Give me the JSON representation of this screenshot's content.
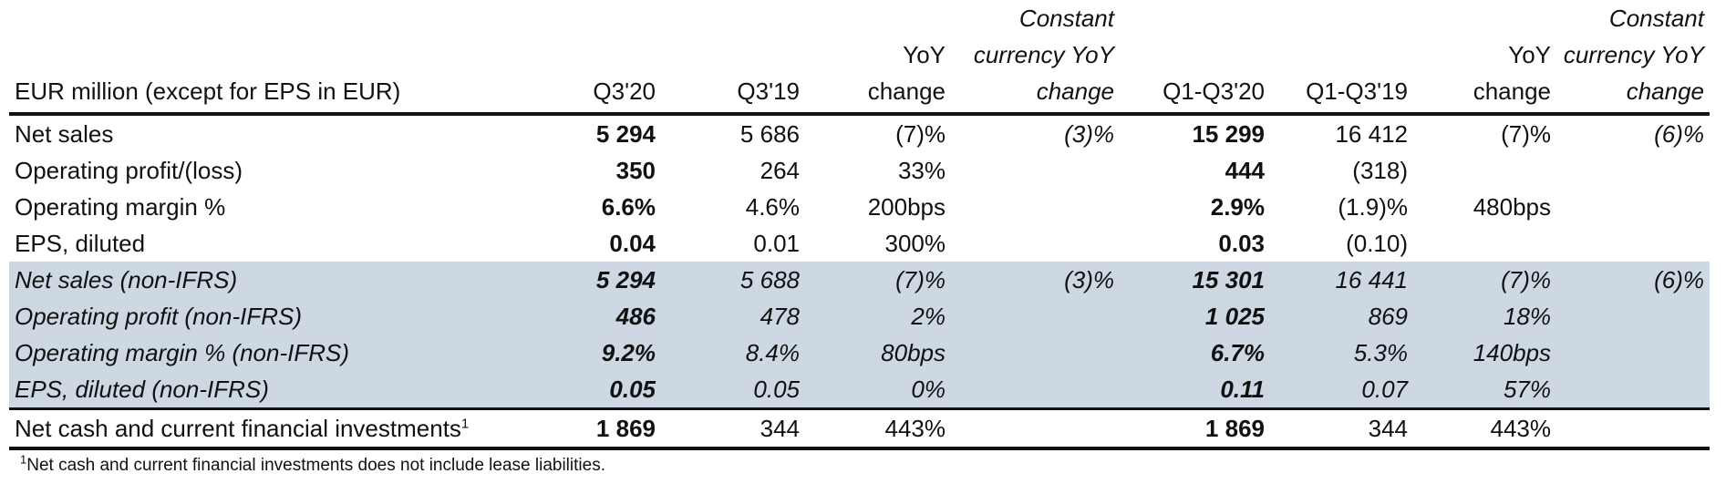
{
  "header": {
    "label": "EUR million (except for EPS in EUR)",
    "q3_20": "Q3'20",
    "q3_19": "Q3'19",
    "yoy_line1": "YoY",
    "yoy_line2": "change",
    "cc_line1": "Constant",
    "cc_line2": "currency YoY",
    "cc_line3": "change",
    "q1q3_20": "Q1-Q3'20",
    "q1q3_19": "Q1-Q3'19",
    "yoy2_line1": "YoY",
    "yoy2_line2": "change",
    "cc2_line1": "Constant",
    "cc2_line2": "currency YoY",
    "cc2_line3": "change"
  },
  "rows": [
    {
      "label": "Net sales",
      "q3_20": "5 294",
      "q3_19": "5 686",
      "yoy": "(7)%",
      "cc": "(3)%",
      "q1q3_20": "15 299",
      "q1q3_19": "16 412",
      "yoy2": "(7)%",
      "cc2": "(6)%"
    },
    {
      "label": "Operating profit/(loss)",
      "q3_20": "350",
      "q3_19": "264",
      "yoy": "33%",
      "cc": "",
      "q1q3_20": "444",
      "q1q3_19": "(318)",
      "yoy2": "",
      "cc2": ""
    },
    {
      "label": "Operating margin %",
      "q3_20": "6.6%",
      "q3_19": "4.6%",
      "yoy": "200bps",
      "cc": "",
      "q1q3_20": "2.9%",
      "q1q3_19": "(1.9)%",
      "yoy2": "480bps",
      "cc2": ""
    },
    {
      "label": "EPS, diluted",
      "q3_20": "0.04",
      "q3_19": "0.01",
      "yoy": "300%",
      "cc": "",
      "q1q3_20": "0.03",
      "q1q3_19": "(0.10)",
      "yoy2": "",
      "cc2": ""
    },
    {
      "label": "Net sales (non-IFRS)",
      "q3_20": "5 294",
      "q3_19": "5 688",
      "yoy": "(7)%",
      "cc": "(3)%",
      "q1q3_20": "15 301",
      "q1q3_19": "16 441",
      "yoy2": "(7)%",
      "cc2": "(6)%"
    },
    {
      "label": "Operating profit (non-IFRS)",
      "q3_20": "486",
      "q3_19": "478",
      "yoy": "2%",
      "cc": "",
      "q1q3_20": "1 025",
      "q1q3_19": "869",
      "yoy2": "18%",
      "cc2": ""
    },
    {
      "label": "Operating margin % (non-IFRS)",
      "q3_20": "9.2%",
      "q3_19": "8.4%",
      "yoy": "80bps",
      "cc": "",
      "q1q3_20": "6.7%",
      "q1q3_19": "5.3%",
      "yoy2": "140bps",
      "cc2": ""
    },
    {
      "label": "EPS, diluted (non-IFRS)",
      "q3_20": "0.05",
      "q3_19": "0.05",
      "yoy": "0%",
      "cc": "",
      "q1q3_20": "0.11",
      "q1q3_19": "0.07",
      "yoy2": "57%",
      "cc2": ""
    },
    {
      "label": "Net cash and current financial investments",
      "footnote_mark": "1",
      "q3_20": "1 869",
      "q3_19": "344",
      "yoy": "443%",
      "cc": "",
      "q1q3_20": "1 869",
      "q1q3_19": "344",
      "yoy2": "443%",
      "cc2": ""
    }
  ],
  "footnote": {
    "mark": "1",
    "text": "Net cash and current financial investments does not include lease liabilities."
  }
}
